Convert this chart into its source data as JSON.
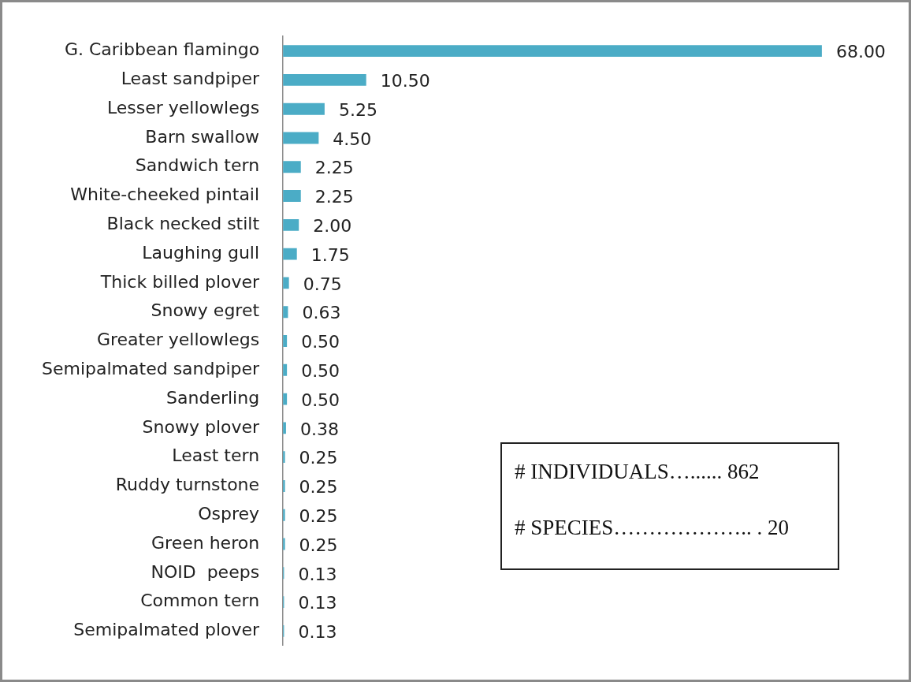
{
  "chart_data": {
    "type": "bar",
    "orientation": "horizontal",
    "categories": [
      "G. Caribbean flamingo",
      "Least sandpiper",
      "Lesser yellowlegs",
      "Barn swallow",
      "Sandwich tern",
      "White-cheeked pintail",
      "Black necked stilt",
      "Laughing gull",
      "Thick billed plover",
      "Snowy egret",
      "Greater yellowlegs",
      "Semipalmated sandpiper",
      "Sanderling",
      "Snowy plover",
      "Least tern",
      "Ruddy turnstone",
      "Osprey",
      "Green heron",
      "NOID  peeps",
      "Common tern",
      "Semipalmated plover"
    ],
    "values": [
      68.0,
      10.5,
      5.25,
      4.5,
      2.25,
      2.25,
      2.0,
      1.75,
      0.75,
      0.63,
      0.5,
      0.5,
      0.5,
      0.38,
      0.25,
      0.25,
      0.25,
      0.25,
      0.13,
      0.13,
      0.13
    ],
    "value_labels": [
      "68.00",
      "10.50",
      "5.25",
      "4.50",
      "2.25",
      "2.25",
      "2.00",
      "1.75",
      "0.75",
      "0.63",
      "0.50",
      "0.50",
      "0.50",
      "0.38",
      "0.25",
      "0.25",
      "0.25",
      "0.25",
      "0.13",
      "0.13",
      "0.13"
    ],
    "color": "#4bacc6",
    "tick_labels": "y",
    "grid": false,
    "legend": false,
    "annotations": [
      "# INDIVIDUALS…...... 862",
      "# SPECIES……………….. . 20"
    ]
  }
}
